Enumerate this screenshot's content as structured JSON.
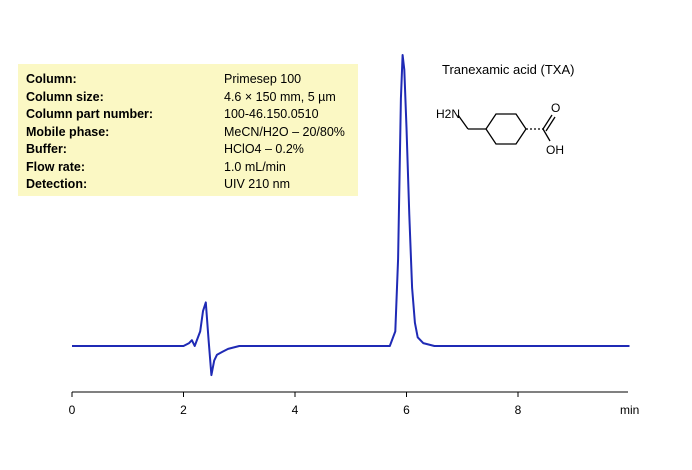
{
  "conditions": [
    {
      "label": "Column:",
      "value": "Primesep  100"
    },
    {
      "label": "Column size:",
      "value": "4.6 × 150 mm, 5 µm"
    },
    {
      "label": "Column part number:",
      "value": "100-46.150.0510"
    },
    {
      "label": "Mobile phase:",
      "value": "MeCN/H2O – 20/80%"
    },
    {
      "label": "Buffer:",
      "value": "HClO4 – 0.2%"
    },
    {
      "label": "Flow rate:",
      "value": "1.0 mL/min"
    },
    {
      "label": "Detection:",
      "value": "UIV 210 nm"
    }
  ],
  "compound": {
    "name": "Tranexamic acid (TXA)",
    "amine_label": "H2N",
    "oxygen_label": "O",
    "hydroxyl_label": "OH"
  },
  "chart_data": {
    "type": "line",
    "title": "",
    "xlabel": "min",
    "ylabel": "",
    "xlim": [
      0,
      10
    ],
    "x_ticks": [
      0,
      2,
      4,
      6,
      8
    ],
    "x_tick_labels": [
      "0",
      "2",
      "4",
      "6",
      "8"
    ],
    "grid": false,
    "line_color": "#1f2ab5",
    "series": [
      {
        "x": [
          0,
          0.5,
          1.0,
          1.5,
          2.0,
          2.1,
          2.15,
          2.2,
          2.3,
          2.35,
          2.4,
          2.45,
          2.5,
          2.55,
          2.6,
          2.7,
          2.8,
          3.0,
          3.5,
          4.0,
          4.5,
          5.0,
          5.5,
          5.7,
          5.8,
          5.85,
          5.9,
          5.93,
          5.96,
          6.0,
          6.05,
          6.1,
          6.15,
          6.2,
          6.3,
          6.5,
          7.0,
          7.5,
          8.0,
          8.5,
          9.0,
          9.5,
          10.0
        ],
        "y": [
          0.0,
          0.0,
          0.0,
          0.0,
          0.0,
          0.01,
          0.02,
          0.0,
          0.05,
          0.12,
          0.15,
          0.02,
          -0.1,
          -0.05,
          -0.03,
          -0.02,
          -0.01,
          0.0,
          0.0,
          0.0,
          0.0,
          0.0,
          0.0,
          0.0,
          0.05,
          0.3,
          0.85,
          1.0,
          0.95,
          0.75,
          0.45,
          0.2,
          0.08,
          0.03,
          0.01,
          0.0,
          0.0,
          0.0,
          0.0,
          0.0,
          0.0,
          0.0,
          0.0
        ]
      }
    ]
  }
}
